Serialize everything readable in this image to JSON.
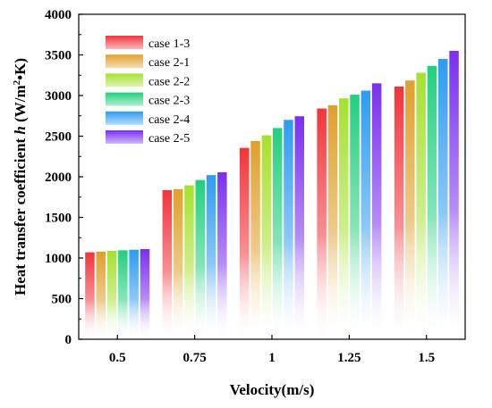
{
  "chart_data": {
    "type": "bar",
    "xlabel": "Velocity(m/s)",
    "ylabel": {
      "prefix": "Heat transfer coefficient ",
      "symbol": "h",
      "unit_open": " (W/m",
      "unit_sup": "2",
      "unit_close": "•K)"
    },
    "ylim": [
      0,
      4000
    ],
    "yticks": [
      "0",
      "500",
      "1000",
      "1500",
      "2000",
      "2500",
      "3000",
      "3500",
      "4000"
    ],
    "categories": [
      "0.5",
      "0.75",
      "1",
      "1.25",
      "1.5"
    ],
    "legend_position": "top-left",
    "grid": false,
    "gradient_fade_to": "#ffffff",
    "series": [
      {
        "name": "case 1-3",
        "color": "#f2343c",
        "values": [
          1070,
          1835,
          2355,
          2840,
          3110
        ]
      },
      {
        "name": "case 2-1",
        "color": "#e0a02a",
        "values": [
          1078,
          1848,
          2440,
          2880,
          3185
        ]
      },
      {
        "name": "case 2-2",
        "color": "#a6e12e",
        "values": [
          1088,
          1895,
          2510,
          2965,
          3280
        ]
      },
      {
        "name": "case 2-3",
        "color": "#22d07e",
        "values": [
          1095,
          1960,
          2600,
          3010,
          3365
        ]
      },
      {
        "name": "case 2-4",
        "color": "#2c9cf2",
        "values": [
          1102,
          2020,
          2700,
          3060,
          3450
        ]
      },
      {
        "name": "case 2-5",
        "color": "#7a2ff0",
        "values": [
          1110,
          2055,
          2745,
          3150,
          3550
        ]
      }
    ]
  }
}
